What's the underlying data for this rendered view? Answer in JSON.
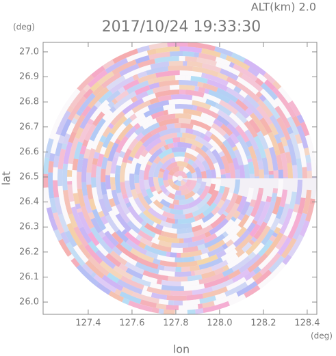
{
  "chart_data": {
    "type": "radar-ppi",
    "title": "2017/10/24 19:33:30",
    "subtitle": "ALT(km) 2.0",
    "xlabel": "lon",
    "ylabel": "lat",
    "xunit": "(deg)",
    "yunit": "(deg)",
    "xlim": [
      127.194,
      128.444
    ],
    "ylim": [
      25.951,
      27.038
    ],
    "xticks": [
      127.4,
      127.6,
      127.8,
      {
        "value": 128.0,
        "label": "128.0"
      },
      128.2,
      128.4
    ],
    "yticks": [
      {
        "value": 26.0,
        "label": "26.0"
      },
      26.1,
      26.2,
      26.3,
      26.4,
      26.5,
      26.6,
      26.7,
      26.8,
      26.9,
      {
        "value": 27.0,
        "label": "27.0"
      }
    ]
  }
}
